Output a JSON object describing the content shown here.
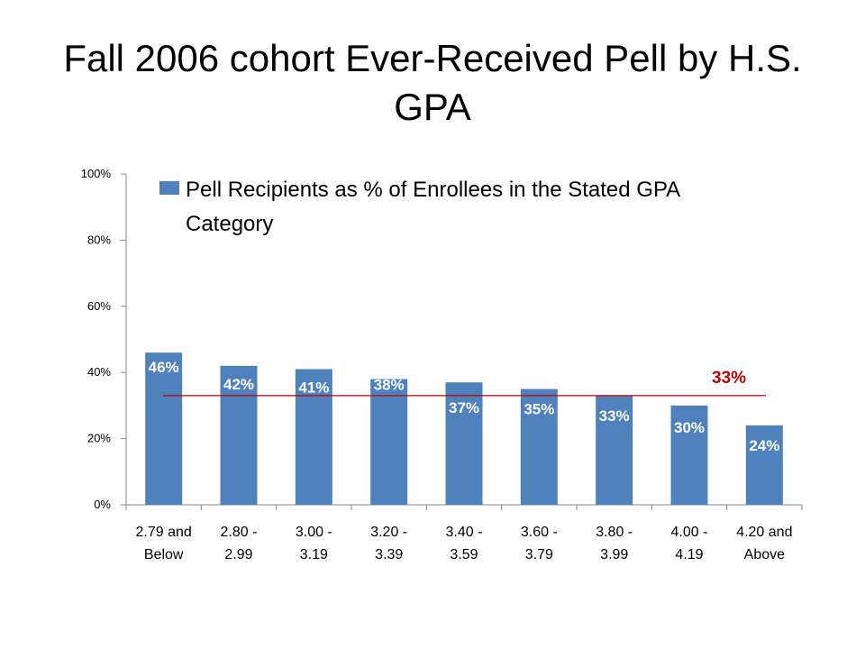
{
  "slide": {
    "title": "Fall 2006 cohort Ever-Received Pell by H.S. GPA"
  },
  "chart_data": {
    "type": "bar",
    "title": "Fall 2006 cohort Ever-Received Pell by H.S. GPA",
    "categories": [
      [
        "2.79 and",
        "Below"
      ],
      [
        "2.80 -",
        "2.99"
      ],
      [
        "3.00 -",
        "3.19"
      ],
      [
        "3.20 -",
        "3.39"
      ],
      [
        "3.40 -",
        "3.59"
      ],
      [
        "3.60 -",
        "3.79"
      ],
      [
        "3.80 -",
        "3.99"
      ],
      [
        "4.00 -",
        "4.19"
      ],
      [
        "4.20 and",
        "Above"
      ]
    ],
    "series": [
      {
        "name": "Pell Recipients as % of Enrollees in the Stated GPA Category",
        "values": [
          46,
          42,
          41,
          38,
          37,
          35,
          33,
          30,
          24
        ],
        "data_labels": [
          "46%",
          "42%",
          "41%",
          "38%",
          "37%",
          "35%",
          "33%",
          "30%",
          "24%"
        ],
        "color": "#4f81bd"
      }
    ],
    "reference_line": {
      "value": 33,
      "label": "33%",
      "color": "#c00000"
    },
    "ylim": [
      0,
      100
    ],
    "yticks": [
      0,
      20,
      40,
      60,
      80,
      100
    ],
    "ytick_labels": [
      "0%",
      "20%",
      "40%",
      "60%",
      "80%",
      "100%"
    ],
    "grid": false,
    "legend": {
      "position": "top",
      "entries": [
        "Pell Recipients as % of Enrollees in the Stated GPA",
        "Category"
      ]
    },
    "xlabel": "",
    "ylabel": ""
  }
}
